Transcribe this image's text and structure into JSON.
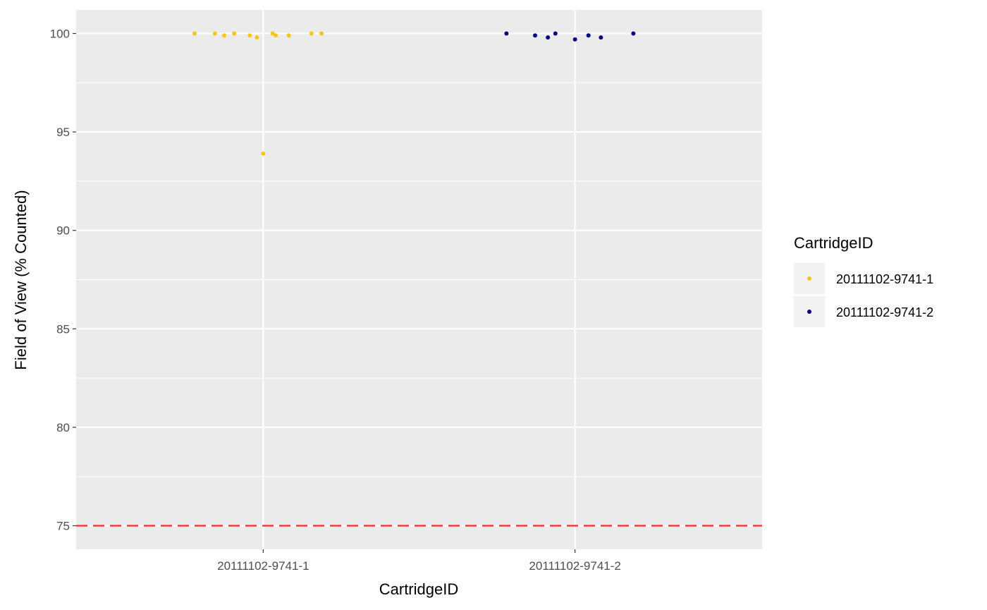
{
  "chart_data": {
    "type": "scatter",
    "title": "",
    "xlabel": "CartridgeID",
    "ylabel": "Field of View (% Counted)",
    "categories": [
      "20111102-9741-1",
      "20111102-9741-2"
    ],
    "y_ticks": [
      75,
      80,
      85,
      90,
      95,
      100
    ],
    "y_tick_labels": [
      "75",
      "80",
      "85",
      "90",
      "95",
      "100"
    ],
    "ylim": [
      73.8,
      101.2
    ],
    "grid": true,
    "reference_line": {
      "y": 75,
      "color": "#ff2a2a",
      "style": "dashed"
    },
    "legend": {
      "title": "CartridgeID",
      "position": "right",
      "entries": [
        "20111102-9741-1",
        "20111102-9741-2"
      ]
    },
    "series": [
      {
        "name": "20111102-9741-1",
        "color": "#f5c518",
        "points": [
          {
            "x": "20111102-9741-1",
            "jitter": -0.22,
            "y": 100.0
          },
          {
            "x": "20111102-9741-1",
            "jitter": -0.155,
            "y": 100.0
          },
          {
            "x": "20111102-9741-1",
            "jitter": -0.125,
            "y": 99.9
          },
          {
            "x": "20111102-9741-1",
            "jitter": -0.093,
            "y": 100.0
          },
          {
            "x": "20111102-9741-1",
            "jitter": -0.043,
            "y": 99.9
          },
          {
            "x": "20111102-9741-1",
            "jitter": -0.02,
            "y": 99.8
          },
          {
            "x": "20111102-9741-1",
            "jitter": 0.0,
            "y": 93.9
          },
          {
            "x": "20111102-9741-1",
            "jitter": 0.03,
            "y": 100.0
          },
          {
            "x": "20111102-9741-1",
            "jitter": 0.04,
            "y": 99.9
          },
          {
            "x": "20111102-9741-1",
            "jitter": 0.082,
            "y": 99.9
          },
          {
            "x": "20111102-9741-1",
            "jitter": 0.155,
            "y": 100.0
          },
          {
            "x": "20111102-9741-1",
            "jitter": 0.187,
            "y": 100.0
          }
        ]
      },
      {
        "name": "20111102-9741-2",
        "color": "#000080",
        "points": [
          {
            "x": "20111102-9741-2",
            "jitter": -0.22,
            "y": 100.0
          },
          {
            "x": "20111102-9741-2",
            "jitter": -0.128,
            "y": 99.9
          },
          {
            "x": "20111102-9741-2",
            "jitter": -0.087,
            "y": 99.8
          },
          {
            "x": "20111102-9741-2",
            "jitter": -0.063,
            "y": 100.0
          },
          {
            "x": "20111102-9741-2",
            "jitter": 0.0,
            "y": 99.7
          },
          {
            "x": "20111102-9741-2",
            "jitter": 0.043,
            "y": 99.9
          },
          {
            "x": "20111102-9741-2",
            "jitter": 0.083,
            "y": 99.8
          },
          {
            "x": "20111102-9741-2",
            "jitter": 0.187,
            "y": 100.0
          }
        ]
      }
    ]
  }
}
